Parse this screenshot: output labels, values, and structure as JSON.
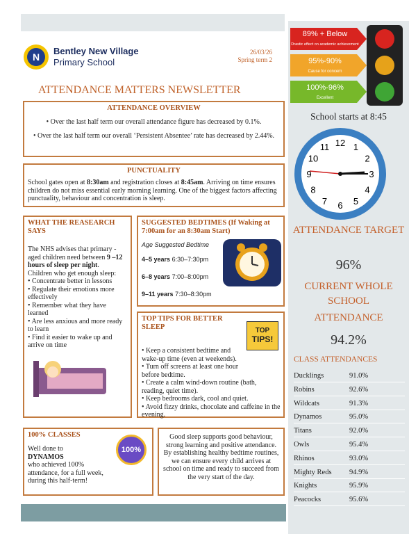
{
  "header": {
    "school_line1": "Bentley New Village",
    "school_line2": "Primary School",
    "date": "26/03/26",
    "term": "Spring term 2",
    "title": "ATTENDANCE MATTERS NEWSLETTER"
  },
  "overview": {
    "heading": "ATTENDANCE OVERVIEW",
    "points": [
      "• Over the last half term our overall attendance figure has decreased by 0.1%.",
      "• Over the last half term our overall ‘Persistent Absentee’ rate has decreased by 2.44%."
    ]
  },
  "punctuality": {
    "heading": "PUNCTUALITY",
    "parts": [
      "School gates open at ",
      "8:30am",
      " and registration closes at ",
      "8:45am",
      ". Arriving on time ensures children do not miss essential early morning learning. One of the biggest factors affecting punctuality, behaviour and concentration is sleep."
    ]
  },
  "research": {
    "heading": "WHAT THE REASEARCH SAYS",
    "intro": "The NHS advises that primary -aged children need between ",
    "highlight": "9 –12 hours of sleep per night",
    "end": ".",
    "lead": "Children who get enough sleep:",
    "points": [
      "• Concentrate better in lessons",
      "• Regulate their emotions more effectively",
      "• Remember what they have learned",
      "• Are less anxious and more ready to learn",
      "• Find it easier to wake up and arrive on time"
    ]
  },
  "bedtimes": {
    "heading": "SUGGESTED BEDTIMES (If Waking at 7:00am for an 8:30am Start)",
    "subheading": "Age Suggested Bedtime",
    "rows": [
      [
        "4–5 years",
        "6:30–7:30pm"
      ],
      [
        "6–8 years",
        "7:00–8:00pm"
      ],
      [
        "9–11 years",
        "7:30–8:30pm"
      ]
    ]
  },
  "tips": {
    "heading": "TOP TIPS FOR BETTER SLEEP",
    "badge": [
      "TOP",
      "TIPS!"
    ],
    "points": [
      "• Keep a consistent bedtime and wake-up time (even at weekends).",
      "• Turn off screens at least one hour before bedtime.",
      "• Create a calm wind-down routine (bath, reading, quiet time).",
      "• Keep bedrooms dark, cool and quiet.",
      "• Avoid fizzy drinks, chocolate and caffeine in the evening."
    ]
  },
  "classes100": {
    "heading": "100% CLASSES",
    "badge": "100%",
    "line1": "Well done to",
    "class_name": "DYNAMOS",
    "line2": "who achieved 100% attendance, for a full week, during this half-term!"
  },
  "closing": "Good sleep supports good behaviour, strong learning and positive attendance. By establishing healthy bedtime routines, we can ensure every child arrives at school on time and ready to succeed from the very start of the day.",
  "traffic_light": [
    {
      "range": "89% + Below",
      "note": "Drastic effect on academic achievement"
    },
    {
      "range": "95%-90%",
      "note": "Cause for concern"
    },
    {
      "range": "100%-96%",
      "note": "Excellent"
    }
  ],
  "sidebar": {
    "start_time": "School starts at 8:45",
    "clock_numbers": [
      "12",
      "1",
      "2",
      "3",
      "4",
      "5",
      "6",
      "7",
      "8",
      "9",
      "10",
      "11"
    ],
    "target_label": "ATTENDANCE TARGET",
    "target_value": "96%",
    "current_label1": "CURRENT WHOLE SCHOOL",
    "current_label2": "ATTENDANCE",
    "current_value": "94.2%",
    "classes_heading": "CLASS ATTENDANCES",
    "classes": [
      [
        "Ducklings",
        "91.0%"
      ],
      [
        "Robins",
        "92.6%"
      ],
      [
        "Wildcats",
        "91.3%"
      ],
      [
        "Dynamos",
        "95.0%"
      ],
      [
        "Titans",
        "92.0%"
      ],
      [
        "Owls",
        "95.4%"
      ],
      [
        "Rhinos",
        "93.0%"
      ],
      [
        "Mighty Reds",
        "94.9%"
      ],
      [
        "Knights",
        "95.9%"
      ],
      [
        "Peacocks",
        "95.6%"
      ]
    ]
  }
}
